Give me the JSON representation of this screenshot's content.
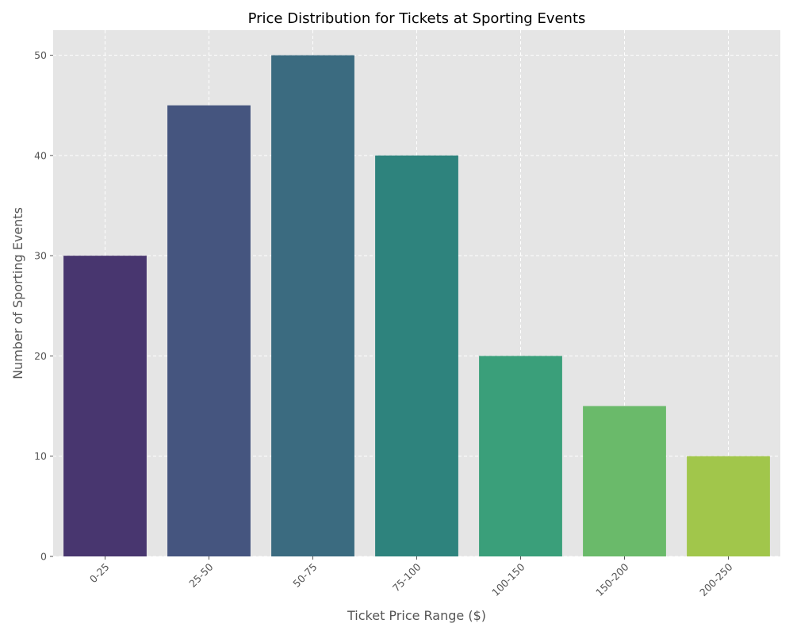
{
  "chart_data": {
    "type": "bar",
    "title": "Price Distribution for Tickets at Sporting Events",
    "xlabel": "Ticket Price Range ($)",
    "ylabel": "Number of Sporting Events",
    "categories": [
      "0-25",
      "25-50",
      "50-75",
      "75-100",
      "100-150",
      "150-200",
      "200-250"
    ],
    "values": [
      30,
      45,
      50,
      40,
      20,
      15,
      10
    ],
    "ylim": [
      0,
      52.5
    ],
    "yticks": [
      0,
      10,
      20,
      30,
      40,
      50
    ],
    "grid": true,
    "colors": [
      "#48366f",
      "#45557f",
      "#3b6b80",
      "#2e837d",
      "#3a9f7a",
      "#6aba6a",
      "#a1c64b"
    ],
    "background_color": "#e5e5e5"
  }
}
